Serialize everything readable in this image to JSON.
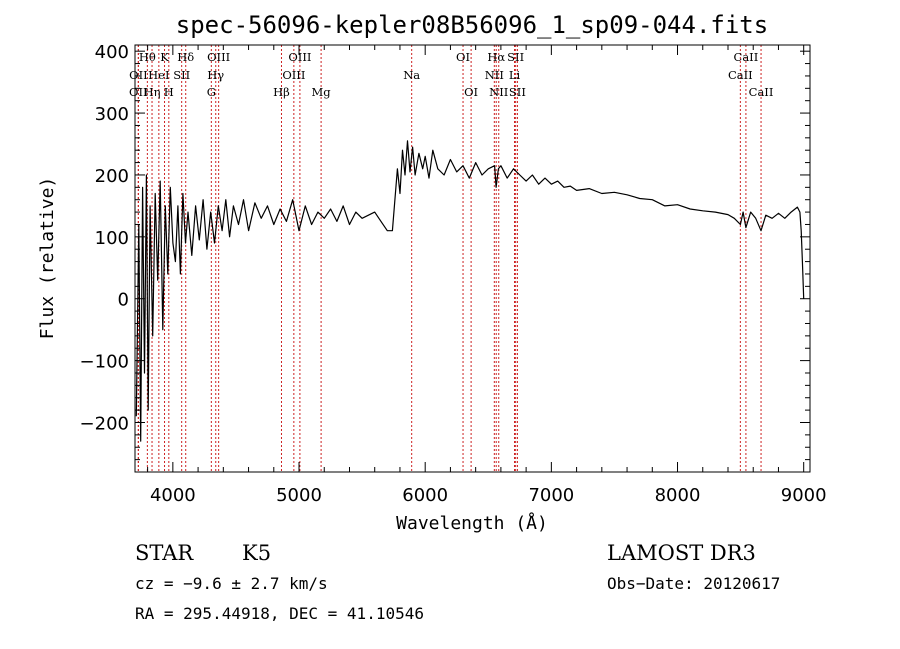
{
  "chart_data": {
    "type": "line",
    "title": "spec-56096-kepler08B56096_1_sp09-044.fits",
    "xlabel": "Wavelength (Å)",
    "ylabel": "Flux (relative)",
    "xlim": [
      3700,
      9050
    ],
    "ylim": [
      -280,
      410
    ],
    "x_ticks": [
      4000,
      5000,
      6000,
      7000,
      8000,
      9000
    ],
    "y_ticks": [
      -200,
      -100,
      0,
      100,
      200,
      300,
      400
    ],
    "x_tick_labels": [
      "4000",
      "5000",
      "6000",
      "7000",
      "8000",
      "9000"
    ],
    "y_tick_labels": [
      "−200",
      "−100",
      "0",
      "100",
      "200",
      "300",
      "400"
    ],
    "series": [
      {
        "name": "flux",
        "x": [
          3710,
          3730,
          3745,
          3760,
          3775,
          3790,
          3805,
          3820,
          3840,
          3860,
          3880,
          3900,
          3920,
          3940,
          3960,
          3980,
          4000,
          4020,
          4040,
          4060,
          4080,
          4100,
          4120,
          4150,
          4180,
          4210,
          4240,
          4270,
          4300,
          4330,
          4360,
          4390,
          4420,
          4450,
          4480,
          4520,
          4560,
          4600,
          4650,
          4700,
          4750,
          4800,
          4850,
          4900,
          4950,
          5000,
          5050,
          5100,
          5150,
          5200,
          5250,
          5300,
          5350,
          5400,
          5450,
          5500,
          5550,
          5600,
          5650,
          5700,
          5740,
          5780,
          5800,
          5820,
          5840,
          5860,
          5880,
          5900,
          5920,
          5950,
          5980,
          6000,
          6030,
          6060,
          6100,
          6150,
          6200,
          6250,
          6300,
          6350,
          6400,
          6450,
          6500,
          6550,
          6562,
          6580,
          6600,
          6650,
          6700,
          6750,
          6800,
          6850,
          6900,
          6950,
          7000,
          7050,
          7100,
          7150,
          7200,
          7300,
          7400,
          7500,
          7600,
          7700,
          7800,
          7900,
          8000,
          8100,
          8200,
          8300,
          8400,
          8450,
          8498,
          8520,
          8542,
          8580,
          8620,
          8662,
          8700,
          8750,
          8800,
          8850,
          8900,
          8950,
          8970,
          8980,
          8990,
          9000
        ],
        "y": [
          -190,
          120,
          -230,
          180,
          -120,
          200,
          -180,
          150,
          -60,
          170,
          30,
          190,
          -50,
          150,
          40,
          180,
          90,
          60,
          150,
          40,
          170,
          90,
          140,
          70,
          150,
          95,
          160,
          80,
          140,
          90,
          150,
          110,
          160,
          100,
          150,
          120,
          160,
          110,
          155,
          130,
          150,
          120,
          145,
          125,
          160,
          110,
          150,
          120,
          140,
          130,
          145,
          125,
          150,
          120,
          140,
          130,
          135,
          140,
          125,
          110,
          110,
          210,
          170,
          240,
          200,
          255,
          205,
          245,
          200,
          235,
          210,
          230,
          195,
          240,
          210,
          200,
          225,
          205,
          215,
          195,
          220,
          200,
          210,
          215,
          180,
          210,
          215,
          195,
          210,
          200,
          190,
          200,
          185,
          195,
          185,
          190,
          180,
          182,
          175,
          178,
          170,
          172,
          168,
          162,
          160,
          150,
          152,
          145,
          142,
          140,
          136,
          130,
          120,
          140,
          115,
          140,
          130,
          110,
          135,
          130,
          138,
          130,
          140,
          148,
          140,
          110,
          60,
          0
        ]
      }
    ],
    "line_markers": [
      {
        "label": "Hθ",
        "wavelength": 3798,
        "row": 0
      },
      {
        "label": "K",
        "wavelength": 3934,
        "row": 0
      },
      {
        "label": "Hδ",
        "wavelength": 4102,
        "row": 0
      },
      {
        "label": "OIII",
        "wavelength": 4363,
        "row": 0
      },
      {
        "label": "OIII",
        "wavelength": 5007,
        "row": 0
      },
      {
        "label": "OI",
        "wavelength": 6300,
        "row": 0
      },
      {
        "label": "Hα",
        "wavelength": 6563,
        "row": 0
      },
      {
        "label": "SII",
        "wavelength": 6717,
        "row": 0
      },
      {
        "label": "CaII",
        "wavelength": 8542,
        "row": 0
      },
      {
        "label": "OII",
        "wavelength": 3727,
        "row": 1
      },
      {
        "label": "HeI",
        "wavelength": 3889,
        "row": 1
      },
      {
        "label": "SII",
        "wavelength": 4070,
        "row": 1
      },
      {
        "label": "Hγ",
        "wavelength": 4340,
        "row": 1
      },
      {
        "label": "OIII",
        "wavelength": 4959,
        "row": 1
      },
      {
        "label": "NII",
        "wavelength": 6548,
        "row": 1
      },
      {
        "label": "Li",
        "wavelength": 6708,
        "row": 1
      },
      {
        "label": "CaII",
        "wavelength": 8498,
        "row": 1
      },
      {
        "label": "OII",
        "wavelength": 3726,
        "row": 2
      },
      {
        "label": "Hη",
        "wavelength": 3835,
        "row": 2
      },
      {
        "label": "H",
        "wavelength": 3968,
        "row": 2
      },
      {
        "label": "G",
        "wavelength": 4305,
        "row": 2
      },
      {
        "label": "Hβ",
        "wavelength": 4861,
        "row": 2
      },
      {
        "label": "Mg",
        "wavelength": 5175,
        "row": 2
      },
      {
        "label": "Na",
        "wavelength": 5893,
        "row": 1
      },
      {
        "label": "OI",
        "wavelength": 6364,
        "row": 2
      },
      {
        "label": "NII",
        "wavelength": 6583,
        "row": 2
      },
      {
        "label": "SII",
        "wavelength": 6731,
        "row": 2
      },
      {
        "label": "CaII",
        "wavelength": 8662,
        "row": 2
      }
    ]
  },
  "info": {
    "object_class": "STAR",
    "subclass": "K5",
    "survey": "LAMOST DR3",
    "cz": "cz = −9.6 ± 2.7 km/s",
    "obs_date": "Obs−Date: 20120617",
    "coords": "RA = 295.44918, DEC =  41.10546"
  },
  "colors": {
    "line_marker": "#cc2222",
    "spectrum": "#000000"
  }
}
